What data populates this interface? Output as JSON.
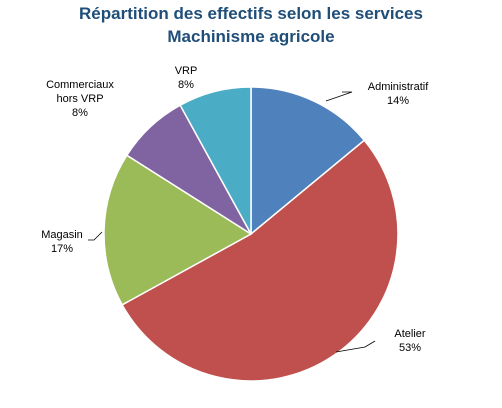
{
  "chart_data": {
    "type": "pie",
    "title_line1": "Répartition des effectifs selon les services",
    "title_line2": "Machinisme agricole",
    "slices": [
      {
        "label": "Administratif",
        "pct_label": "14%",
        "value": 14,
        "color": "#4f81bd"
      },
      {
        "label": "Atelier",
        "pct_label": "53%",
        "value": 53,
        "color": "#c0504d"
      },
      {
        "label": "Magasin",
        "pct_label": "17%",
        "value": 17,
        "color": "#9bbb59"
      },
      {
        "label": "Commerciaux hors VRP",
        "pct_label": "8%",
        "value": 8,
        "color": "#8064a2"
      },
      {
        "label": "VRP",
        "pct_label": "8%",
        "value": 8,
        "color": "#4bacc6"
      }
    ],
    "legend": "none"
  }
}
